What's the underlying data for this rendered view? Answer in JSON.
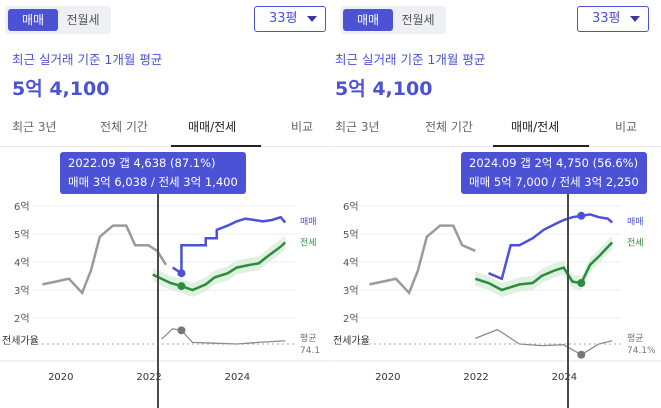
{
  "panels": [
    {
      "toggle": {
        "sale": "매매",
        "rent": "전월세"
      },
      "size": "33평",
      "basis": "최근 실거래 기준 1개월 평균",
      "price": "5억 4,100",
      "tabs": [
        "최근 3년",
        "전체 기간",
        "매매/전세",
        "비교"
      ],
      "tooltip": {
        "line1": "2022.09  갭 4,638 (87.1%)",
        "line2": "매매 3억 6,038 / 전세 3억 1,400"
      },
      "y_ticks": [
        "6억",
        "5억",
        "4억",
        "3억",
        "2억"
      ],
      "x_ticks": [
        "2020",
        "2022",
        "2024"
      ],
      "legend": {
        "sale": "매매",
        "jeonse": "전세",
        "avg": "평균",
        "avg_value": "74.1"
      },
      "ratio_label": "전세가율"
    },
    {
      "toggle": {
        "sale": "매매",
        "rent": "전월세"
      },
      "size": "33평",
      "basis": "최근 실거래 기준 1개월 평균",
      "price": "5억 4,100",
      "tabs": [
        "최근 3년",
        "전체 기간",
        "매매/전세",
        "비교"
      ],
      "tooltip": {
        "line1": "2024.09  갭 2억 4,750 (56.6%)",
        "line2": "매매 5억 7,000 / 전세 3억 2,250"
      },
      "y_ticks": [
        "6억",
        "5억",
        "4억",
        "3억",
        "2억"
      ],
      "x_ticks": [
        "2020",
        "2022",
        "2024"
      ],
      "legend": {
        "sale": "매매",
        "jeonse": "전세",
        "avg": "평균",
        "avg_value": "74.1%"
      },
      "ratio_label": "전세가율"
    }
  ],
  "colors": {
    "accent": "#4b52d6",
    "sale_line": "#4b52d6",
    "jeonse_line": "#2e8b3e",
    "history_line": "#9a9a9a",
    "ratio_line": "#8c8c8c"
  },
  "chart_data": [
    {
      "type": "line",
      "ylabel": "",
      "ylim": [
        1.5,
        6.5
      ],
      "x_range": [
        2019.5,
        2025.3
      ],
      "series": [
        {
          "name": "매매",
          "x": [
            2022.55,
            2022.75,
            2022.75,
            2023.3,
            2023.3,
            2023.55,
            2023.55,
            2023.8,
            2024.0,
            2024.2,
            2024.4,
            2024.6,
            2024.8,
            2025.0,
            2025.1
          ],
          "values": [
            3.8,
            3.6,
            4.6,
            4.6,
            4.85,
            4.85,
            5.15,
            5.3,
            5.45,
            5.55,
            5.5,
            5.45,
            5.5,
            5.6,
            5.41
          ]
        },
        {
          "name": "전세",
          "x": [
            2022.1,
            2022.3,
            2022.5,
            2022.75,
            2023.0,
            2023.3,
            2023.5,
            2023.8,
            2024.0,
            2024.3,
            2024.5,
            2024.7,
            2025.0,
            2025.1
          ],
          "values": [
            3.55,
            3.4,
            3.25,
            3.14,
            3.0,
            3.2,
            3.45,
            3.6,
            3.8,
            3.9,
            3.95,
            4.2,
            4.55,
            4.7
          ]
        }
      ],
      "ratio_series": {
        "name": "전세가율",
        "x": [
          2022.3,
          2022.55,
          2022.75,
          2023.0,
          2023.5,
          2024.0,
          2024.5,
          2025.1
        ],
        "values": [
          76,
          89,
          87.1,
          72,
          71,
          70,
          72,
          74.1
        ]
      },
      "history": {
        "x": [
          2019.6,
          2019.9,
          2020.2,
          2020.5,
          2020.7,
          2020.9,
          2021.2,
          2021.5,
          2021.7,
          2022.0,
          2022.2,
          2022.4
        ],
        "values": [
          3.2,
          3.3,
          3.4,
          2.9,
          3.7,
          4.9,
          5.3,
          5.3,
          4.6,
          4.6,
          4.4,
          3.9
        ]
      }
    },
    {
      "type": "line",
      "ylabel": "",
      "ylim": [
        1.5,
        6.5
      ],
      "x_range": [
        2019.5,
        2025.3
      ],
      "series": [
        {
          "name": "매매",
          "x": [
            2022.3,
            2022.6,
            2022.8,
            2023.0,
            2023.3,
            2023.55,
            2023.8,
            2024.0,
            2024.2,
            2024.4,
            2024.6,
            2024.8,
            2025.0,
            2025.1
          ],
          "values": [
            3.6,
            3.4,
            4.6,
            4.6,
            4.85,
            5.15,
            5.35,
            5.5,
            5.6,
            5.65,
            5.7,
            5.6,
            5.55,
            5.41
          ]
        },
        {
          "name": "전세",
          "x": [
            2022.0,
            2022.3,
            2022.6,
            2022.8,
            2023.0,
            2023.3,
            2023.5,
            2023.8,
            2024.0,
            2024.2,
            2024.4,
            2024.6,
            2024.8,
            2025.1
          ],
          "values": [
            3.4,
            3.25,
            3.0,
            3.1,
            3.2,
            3.25,
            3.5,
            3.7,
            3.8,
            3.3,
            3.25,
            3.9,
            4.2,
            4.7
          ]
        }
      ],
      "ratio_series": {
        "name": "전세가율",
        "x": [
          2022.0,
          2022.5,
          2023.0,
          2023.5,
          2024.0,
          2024.4,
          2024.8,
          2025.1
        ],
        "values": [
          77,
          88,
          70,
          68,
          69,
          56.6,
          70,
          74.1
        ]
      },
      "history": {
        "x": [
          2019.6,
          2019.9,
          2020.2,
          2020.5,
          2020.7,
          2020.9,
          2021.2,
          2021.5,
          2021.7,
          2022.0
        ],
        "values": [
          3.2,
          3.3,
          3.4,
          2.9,
          3.7,
          4.9,
          5.3,
          5.3,
          4.6,
          4.4
        ]
      }
    }
  ]
}
